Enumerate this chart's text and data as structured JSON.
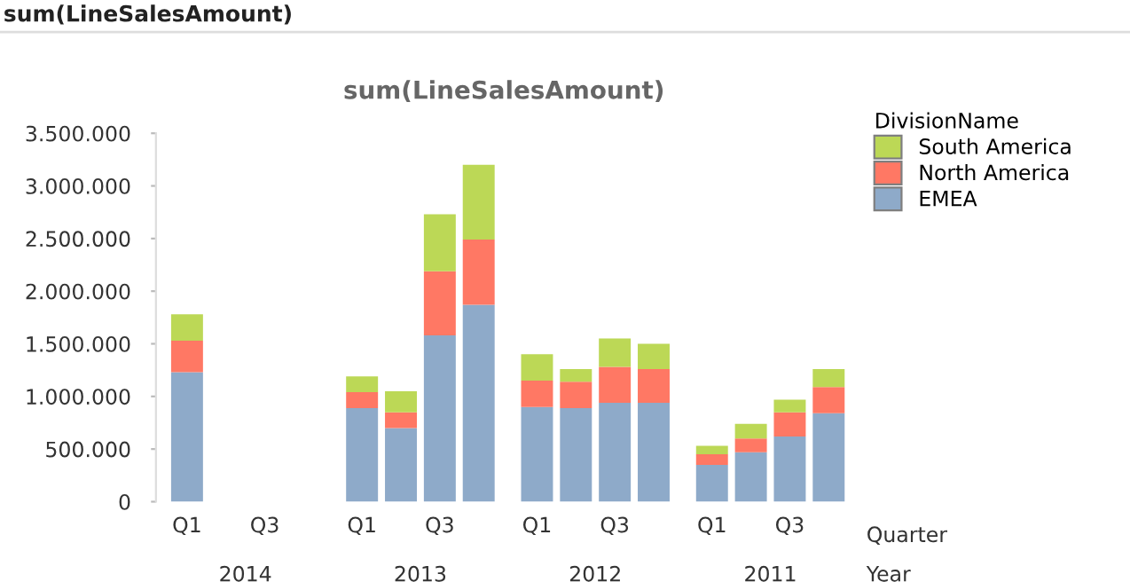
{
  "chart_data": {
    "type": "bar",
    "title": "sum(LineSalesAmount)",
    "xlabel": "Quarter",
    "legend_title": "DivisionName",
    "categories": [
      "Q1",
      null,
      "Q3",
      null,
      "Q1",
      null,
      "Q3",
      null,
      "Q1",
      null,
      "Q3",
      null,
      "Q1",
      null,
      "Q3",
      null
    ],
    "stacked": true,
    "legend": "top right",
    "grid": false,
    "series": [
      {
        "name": "EMEA",
        "color": "#8eaac9",
        "values": [
          1230000,
          null,
          null,
          null,
          890000,
          700000,
          1580000,
          1870000,
          900000,
          890000,
          940000,
          940000,
          350000,
          470000,
          620000,
          840000
        ]
      },
      {
        "name": "North America",
        "color": "#ff7864",
        "values": [
          300000,
          null,
          null,
          null,
          150000,
          150000,
          610000,
          620000,
          250000,
          250000,
          340000,
          320000,
          100000,
          130000,
          230000,
          250000
        ]
      },
      {
        "name": "South America",
        "color": "#bcd856",
        "values": [
          250000,
          null,
          null,
          null,
          150000,
          200000,
          540000,
          710000,
          250000,
          120000,
          270000,
          240000,
          80000,
          140000,
          120000,
          170000
        ]
      }
    ],
    "ylim": [
      0,
      3500000
    ],
    "yticks": [
      0,
      {
        "value": 500000,
        "label": "500.000"
      },
      {
        "value": 1000000,
        "label": "1.000.000"
      },
      {
        "value": 1500000,
        "label": "1.500.000"
      },
      {
        "value": 2000000,
        "label": "2.000.000"
      },
      {
        "value": 2500000,
        "label": "2.500.000"
      },
      {
        "value": 3000000,
        "label": "3.000.000"
      },
      {
        "value": 3500000,
        "label": "3.500.000"
      }
    ],
    "annotations": [
      "sum(LineSalesAmount)",
      "2014",
      "2013",
      "2012",
      "2011",
      "Year"
    ]
  }
}
